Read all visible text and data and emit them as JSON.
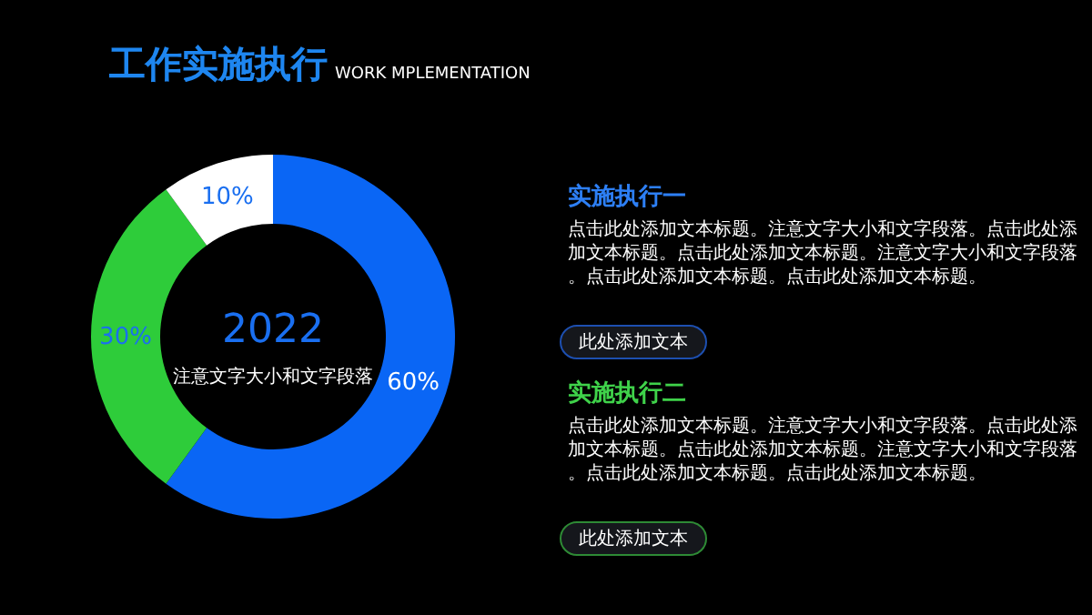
{
  "chart_data": {
    "type": "donut",
    "title": "工作实施执行",
    "subtitle": "WORK MPLEMENTATION",
    "categories": [
      null,
      null,
      null
    ],
    "values": [
      60,
      30,
      10
    ],
    "colors": [
      "#0a66f5",
      "#2ecc3a",
      "#ffffff"
    ],
    "value_labels": [
      "60%",
      "30%",
      "10%"
    ],
    "annotations": [
      "2022",
      "注意文字大小和文字段落",
      "实施执行一",
      "点击此处添加文本标题。注意文字大小和文字段落。点击此处添加文本标题。点击此处添加文本标题。注意文字大小和文字段落。点击此处添加文本标题。点击此处添加文本标题。",
      "此处添加文本",
      "实施执行二",
      "点击此处添加文本标题。注意文字大小和文字段落。点击此处添加文本标题。点击此处添加文本标题。注意文字大小和文字段落。点击此处添加文本标题。点击此处添加文本标题。",
      "此处添加文本"
    ]
  }
}
